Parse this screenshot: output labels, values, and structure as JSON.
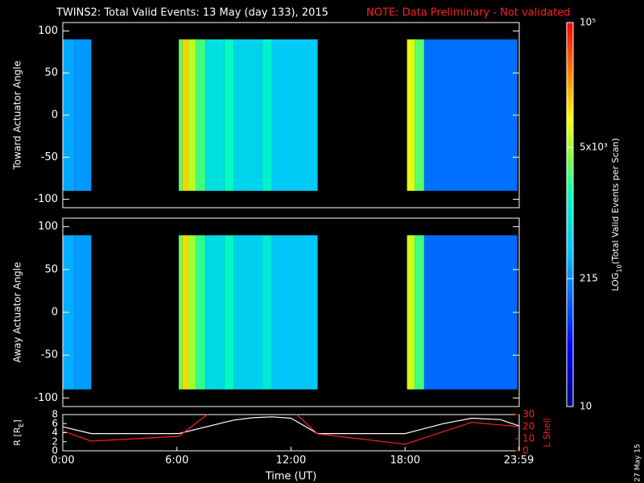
{
  "title": "TWINS2: Total Valid Events: 13 May (day 133), 2015",
  "note": "NOTE: Data Preliminary - Not validated",
  "footer": "27 May 15",
  "chart_data": [
    {
      "type": "heatmap",
      "ylabel": "Toward Actuator Angle",
      "xlim": [
        0,
        24
      ],
      "ylim": [
        -110,
        110
      ],
      "yticks": [
        -100,
        -50,
        0,
        50,
        100
      ],
      "angle_range": [
        -90,
        90
      ],
      "x_edges": [
        0,
        0.6,
        1.5,
        6.1,
        6.3,
        6.6,
        7.0,
        7.5,
        8.5,
        9.0,
        10.5,
        11.0,
        13.4,
        18.1,
        18.5,
        19.0,
        23.9
      ],
      "values": [
        300,
        250,
        null,
        3000,
        15000,
        6000,
        2500,
        800,
        1500,
        600,
        1200,
        500,
        null,
        8000,
        3000,
        150
      ]
    },
    {
      "type": "heatmap",
      "ylabel": "Away Actuator Angle",
      "xlim": [
        0,
        24
      ],
      "ylim": [
        -110,
        110
      ],
      "yticks": [
        -100,
        -50,
        0,
        50,
        100
      ],
      "angle_range": [
        -90,
        90
      ],
      "x_edges": [
        0,
        0.6,
        1.5,
        6.1,
        6.3,
        6.6,
        7.0,
        7.5,
        8.5,
        9.0,
        10.5,
        11.0,
        13.4,
        18.1,
        18.5,
        19.0,
        23.9
      ],
      "values": [
        320,
        260,
        null,
        3500,
        14000,
        5000,
        2200,
        700,
        1400,
        550,
        1000,
        450,
        null,
        7000,
        2500,
        140
      ]
    },
    {
      "type": "line",
      "xlabel": "Time (UT)",
      "xlim": [
        0,
        24
      ],
      "xticks": [
        {
          "value": 0,
          "label": "0:00"
        },
        {
          "value": 6,
          "label": "6:00"
        },
        {
          "value": 12,
          "label": "12:00"
        },
        {
          "value": 18,
          "label": "18:00"
        },
        {
          "value": 23.98,
          "label": "23:59"
        }
      ],
      "ylabel": [
        "R [R",
        "E",
        "]"
      ],
      "ylim": [
        0,
        8
      ],
      "yticks": [
        0,
        2,
        4,
        6,
        8
      ],
      "y2label": "L Shell",
      "y2lim": [
        0,
        30
      ],
      "y2ticks": [
        0,
        10,
        20,
        30
      ],
      "series": [
        {
          "color": "#ffffff",
          "x": [
            0,
            1.5,
            6.1,
            9,
            10,
            11,
            12,
            13.4,
            18.0,
            20,
            21.5,
            23,
            24
          ],
          "values": [
            5.3,
            3.8,
            3.8,
            6.8,
            7.3,
            7.5,
            7.2,
            3.8,
            3.8,
            6,
            7.2,
            6.9,
            5.5
          ]
        },
        {
          "color": "#ff2020",
          "axis": "y2",
          "x": [
            0,
            1.5,
            6.1,
            7.6,
            9.7,
            12.3,
            13.4,
            18.0,
            21.5,
            24.0
          ],
          "values": [
            16.5,
            8,
            12,
            30,
            null,
            30,
            14,
            5.5,
            23.6,
            20
          ]
        }
      ]
    },
    {
      "type": "colorbar",
      "label": [
        "LOG",
        "10",
        "(Total Valid Events per Scan)"
      ],
      "log": true,
      "lim": [
        10,
        100000
      ],
      "ticks": [
        {
          "value": 100000,
          "label": "10⁵"
        },
        {
          "value": 5000,
          "label": "5x10³"
        },
        215,
        10
      ]
    }
  ]
}
